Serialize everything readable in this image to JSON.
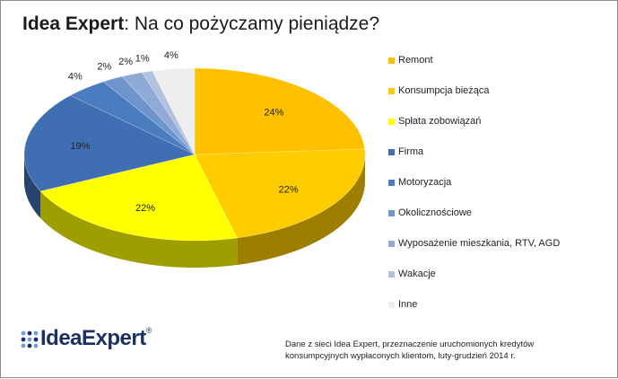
{
  "title": {
    "brand": "Idea Expert",
    "rest": ": Na co pożyczamy pieniądze?"
  },
  "logo": {
    "text": "IdeaExpert",
    "registered": "®"
  },
  "footnote": "Dane z sieci Idea Expert, przeznaczenie uruchomionych kredytów konsumpcyjnych wypłaconych klientom, luty-grudzień 2014 r.",
  "chart_data": {
    "type": "pie",
    "title": "Idea Expert: Na co pożyczamy pieniądze?",
    "legend_position": "right",
    "slices": [
      {
        "name": "Remont",
        "value": 24,
        "label": "24%",
        "color": "#FFC000"
      },
      {
        "name": "Konsumpcja bieżąca",
        "value": 22,
        "label": "22%",
        "color": "#FFCC00"
      },
      {
        "name": "Spłata zobowiązań",
        "value": 22,
        "label": "22%",
        "color": "#FFFF00"
      },
      {
        "name": "Firma",
        "value": 19,
        "label": "19%",
        "color": "#3F6EB2"
      },
      {
        "name": "Motoryzacja",
        "value": 4,
        "label": "4%",
        "color": "#4A7CC0"
      },
      {
        "name": "Okolicznościowe",
        "value": 2,
        "label": "2%",
        "color": "#6F94CC"
      },
      {
        "name": "Wyposażenie mieszkania, RTV, AGD",
        "value": 2,
        "label": "2%",
        "color": "#8FAAD6"
      },
      {
        "name": "Wakacje",
        "value": 1,
        "label": "1%",
        "color": "#B0C2E0"
      },
      {
        "name": "Inne",
        "value": 4,
        "label": "4%",
        "color": "#EEEEEE"
      }
    ]
  }
}
